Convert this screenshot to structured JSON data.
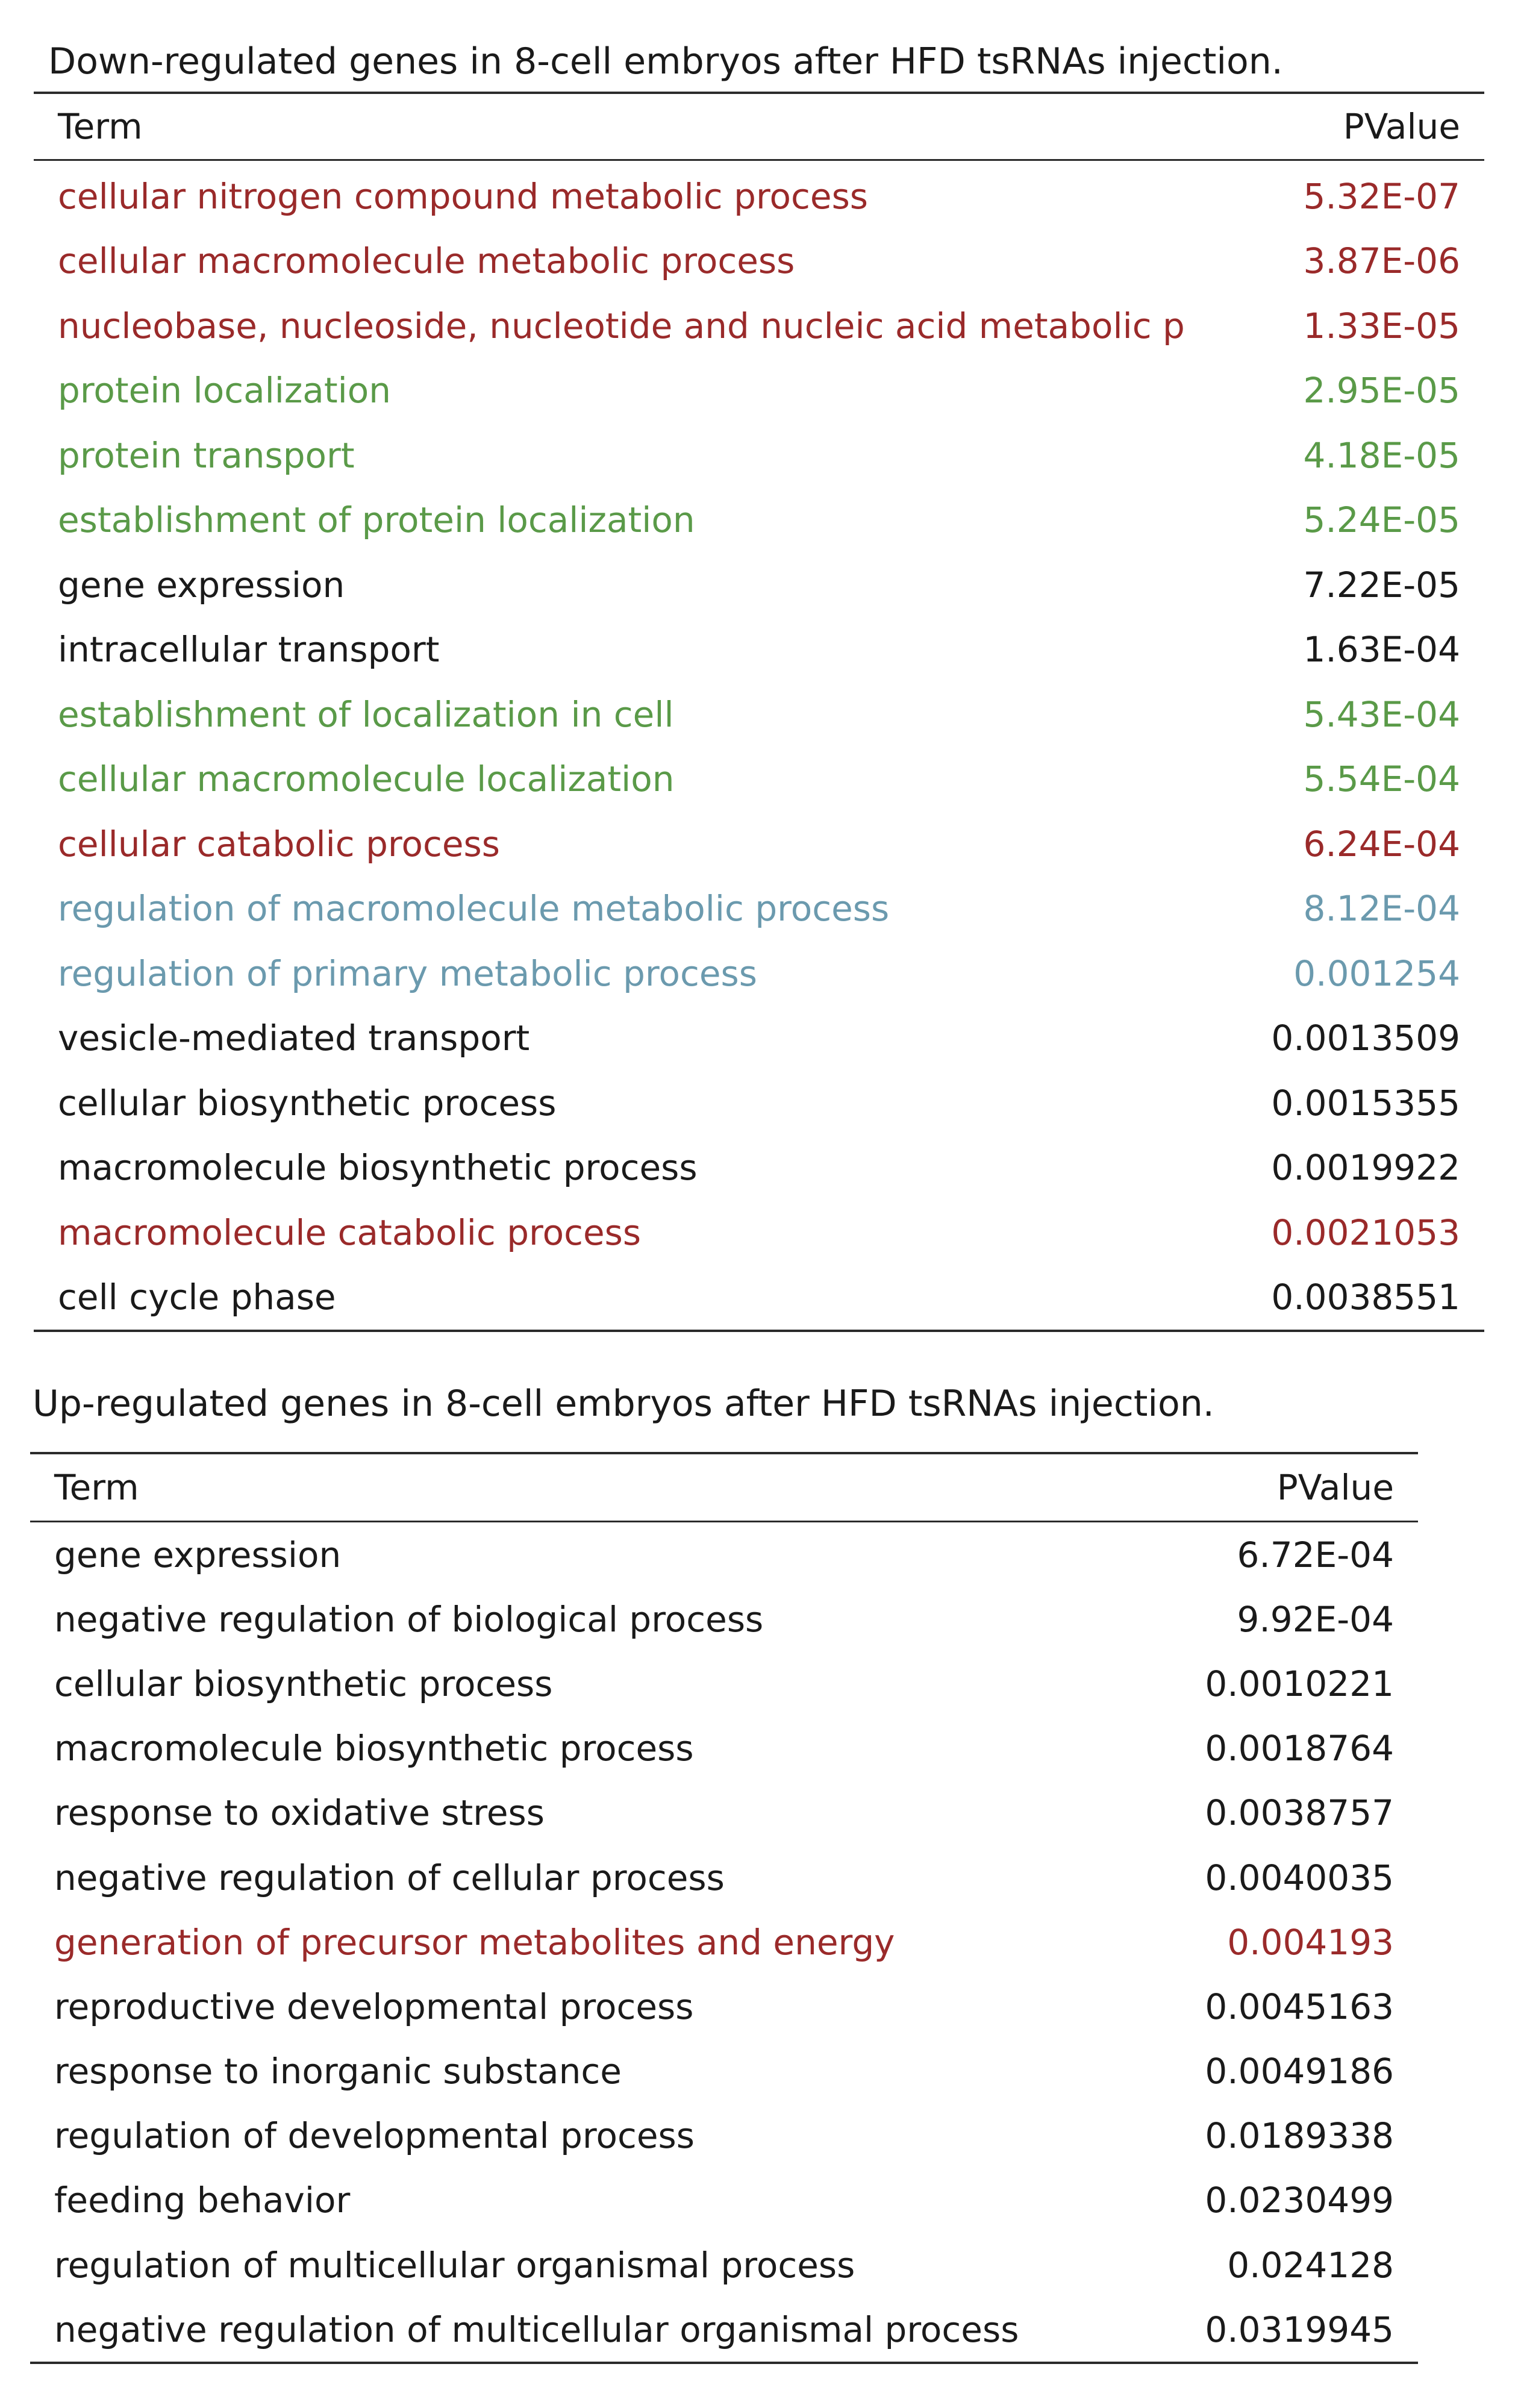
{
  "colors": {
    "default": "#1a1a1a",
    "red": "#9a2a2a",
    "green": "#5a9a48",
    "blue": "#6b9aae"
  },
  "tables": [
    {
      "title": "Down-regulated genes in 8-cell embryos after HFD tsRNAs injection.",
      "headers": {
        "term": "Term",
        "pvalue": "PValue"
      },
      "rows": [
        {
          "term": "cellular nitrogen compound metabolic process",
          "pvalue": "5.32E-07",
          "color": "red"
        },
        {
          "term": "cellular macromolecule metabolic process",
          "pvalue": "3.87E-06",
          "color": "red"
        },
        {
          "term": "nucleobase, nucleoside, nucleotide and nucleic acid metabolic process",
          "pvalue": "1.33E-05",
          "color": "red"
        },
        {
          "term": "protein localization",
          "pvalue": "2.95E-05",
          "color": "green"
        },
        {
          "term": "protein transport",
          "pvalue": "4.18E-05",
          "color": "green"
        },
        {
          "term": "establishment of protein localization",
          "pvalue": "5.24E-05",
          "color": "green"
        },
        {
          "term": "gene expression",
          "pvalue": "7.22E-05",
          "color": "default"
        },
        {
          "term": "intracellular transport",
          "pvalue": "1.63E-04",
          "color": "default"
        },
        {
          "term": "establishment of localization in cell",
          "pvalue": "5.43E-04",
          "color": "green"
        },
        {
          "term": "cellular macromolecule localization",
          "pvalue": "5.54E-04",
          "color": "green"
        },
        {
          "term": "cellular catabolic process",
          "pvalue": "6.24E-04",
          "color": "red"
        },
        {
          "term": "regulation of macromolecule metabolic process",
          "pvalue": "8.12E-04",
          "color": "blue"
        },
        {
          "term": "regulation of primary metabolic process",
          "pvalue": "0.001254",
          "color": "blue"
        },
        {
          "term": "vesicle-mediated transport",
          "pvalue": "0.0013509",
          "color": "default"
        },
        {
          "term": "cellular biosynthetic process",
          "pvalue": "0.0015355",
          "color": "default"
        },
        {
          "term": "macromolecule biosynthetic process",
          "pvalue": "0.0019922",
          "color": "default"
        },
        {
          "term": "macromolecule catabolic process",
          "pvalue": "0.0021053",
          "color": "red"
        },
        {
          "term": "cell cycle phase",
          "pvalue": "0.0038551",
          "color": "default"
        }
      ]
    },
    {
      "title": "Up-regulated genes in 8-cell embryos after HFD tsRNAs injection.",
      "headers": {
        "term": "Term",
        "pvalue": "PValue"
      },
      "rows": [
        {
          "term": "gene expression",
          "pvalue": "6.72E-04",
          "color": "default"
        },
        {
          "term": "negative regulation of biological process",
          "pvalue": "9.92E-04",
          "color": "default"
        },
        {
          "term": "cellular biosynthetic process",
          "pvalue": "0.0010221",
          "color": "default"
        },
        {
          "term": "macromolecule biosynthetic process",
          "pvalue": "0.0018764",
          "color": "default"
        },
        {
          "term": "response to oxidative stress",
          "pvalue": "0.0038757",
          "color": "default"
        },
        {
          "term": "negative regulation of cellular process",
          "pvalue": "0.0040035",
          "color": "default"
        },
        {
          "term": "generation of precursor metabolites and energy",
          "pvalue": "0.004193",
          "color": "red"
        },
        {
          "term": "reproductive developmental process",
          "pvalue": "0.0045163",
          "color": "default"
        },
        {
          "term": "response to inorganic substance",
          "pvalue": "0.0049186",
          "color": "default"
        },
        {
          "term": "regulation of developmental process",
          "pvalue": "0.0189338",
          "color": "default"
        },
        {
          "term": "feeding behavior",
          "pvalue": "0.0230499",
          "color": "default"
        },
        {
          "term": "regulation of multicellular organismal process",
          "pvalue": "0.024128",
          "color": "default"
        },
        {
          "term": "negative regulation of multicellular organismal process",
          "pvalue": "0.0319945",
          "color": "default"
        }
      ]
    }
  ]
}
